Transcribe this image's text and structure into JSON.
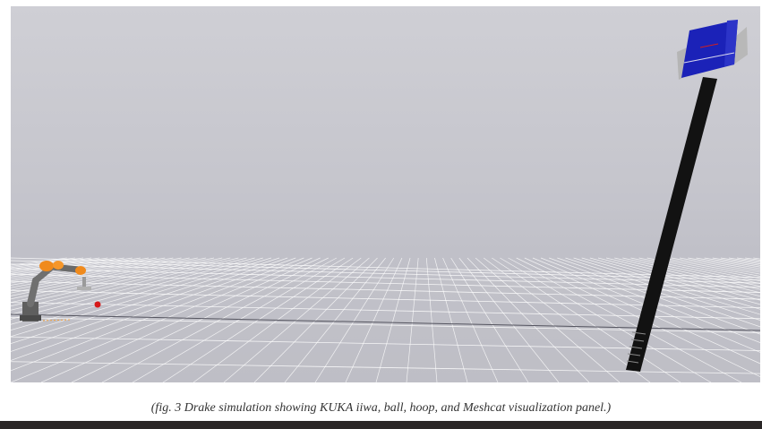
{
  "scene": {
    "background_color": "#c6c6cd",
    "ground_grid_color": "#ffffff",
    "objects": [
      {
        "name": "KUKA iiwa",
        "link_color": "#6e6e6e",
        "joint_color": "#f08a1c"
      },
      {
        "name": "ball",
        "color": "#d61818"
      },
      {
        "name": "hoop",
        "pole_color": "#111111",
        "board_color": "#1b22b8",
        "side_panel_color": "#b5b5b5"
      }
    ]
  },
  "caption": {
    "text": "(fig. 3 Drake simulation showing KUKA iiwa, ball, hoop, and Meshcat visualization panel.)"
  }
}
